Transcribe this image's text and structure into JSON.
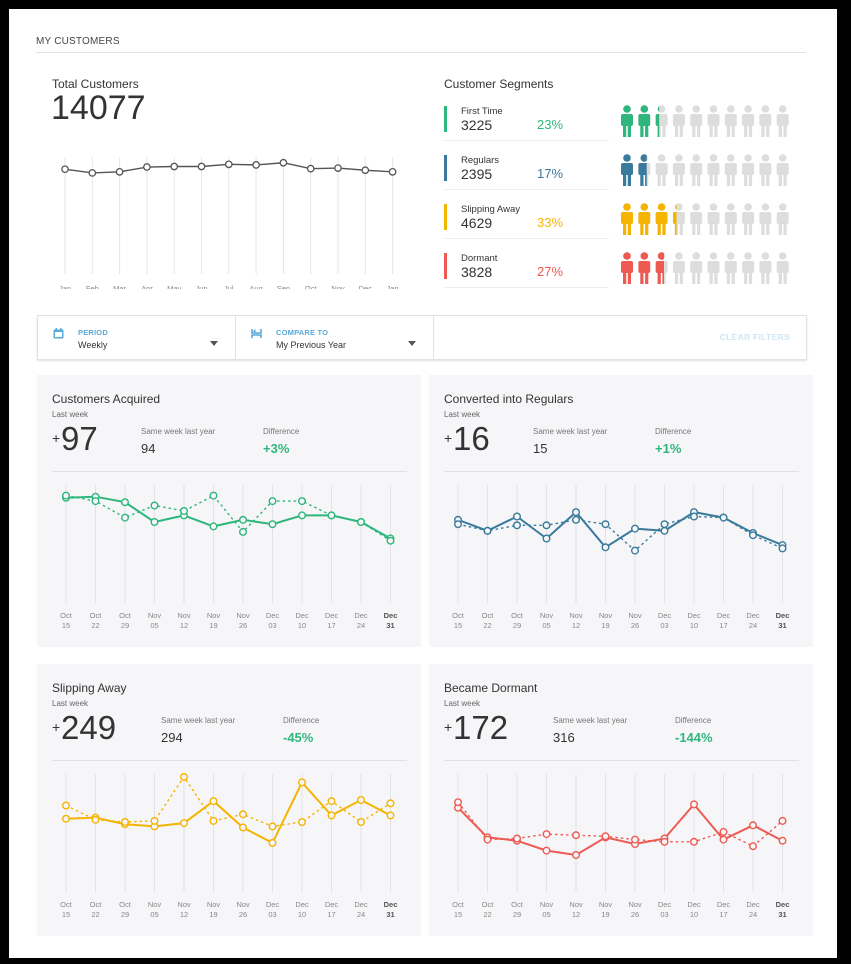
{
  "page": {
    "title": "MY CUSTOMERS"
  },
  "total": {
    "label": "Total Customers",
    "value": "14077",
    "chart_data": {
      "type": "line",
      "categories": [
        "Jan",
        "Feb",
        "Mar",
        "Apr",
        "May",
        "Jun",
        "Jul",
        "Aug",
        "Sep",
        "Oct",
        "Nov",
        "Dec",
        "Jan"
      ],
      "values": [
        14050,
        13980,
        14000,
        14090,
        14100,
        14100,
        14140,
        14130,
        14170,
        14060,
        14070,
        14030,
        14000
      ],
      "ylim": [
        12000,
        14800
      ],
      "grid": "vertical"
    }
  },
  "segments": {
    "title": "Customer Segments",
    "items": [
      {
        "name": "First Time",
        "value": "3225",
        "percent": "23%",
        "fraction": 0.23,
        "color": "#2fb67c"
      },
      {
        "name": "Regulars",
        "value": "2395",
        "percent": "17%",
        "fraction": 0.17,
        "color": "#3a7a9c"
      },
      {
        "name": "Slipping Away",
        "value": "4629",
        "percent": "33%",
        "fraction": 0.33,
        "color": "#f4b400"
      },
      {
        "name": "Dormant",
        "value": "3828",
        "percent": "27%",
        "fraction": 0.27,
        "color": "#ee5a52"
      }
    ],
    "icon": "person-icon",
    "icon_inactive_color": "#dddddd"
  },
  "filters": {
    "period": {
      "label": "PERIOD",
      "value": "Weekly",
      "icon": "calendar-icon"
    },
    "compare": {
      "label": "COMPARE TO",
      "value": "My Previous Year",
      "icon": "compare-icon"
    },
    "clear_label": "CLEAR FILTERS"
  },
  "panels": [
    {
      "title": "Customers Acquired",
      "sub": "Last week",
      "plus": "+",
      "value": "97",
      "compare_label": "Same week last year",
      "compare_value": "94",
      "diff_label": "Difference",
      "diff_value": "+3%",
      "color": "#2fb67c",
      "chart_data": {
        "type": "line",
        "categories": [
          "Oct 15",
          "Oct 22",
          "Oct 29",
          "Nov 05",
          "Nov 12",
          "Nov 19",
          "Nov 26",
          "Dec 03",
          "Dec 10",
          "Dec 17",
          "Dec 24",
          "Dec 31"
        ],
        "ylim": [
          0,
          100
        ],
        "series": [
          {
            "style": "solid",
            "values": [
              92,
              93,
              88,
              70,
              76,
              66,
              72,
              68,
              76,
              76,
              70,
              55
            ]
          },
          {
            "style": "dashed",
            "values": [
              94,
              89,
              74,
              85,
              80,
              94,
              61,
              89,
              89,
              76,
              70,
              53
            ]
          }
        ]
      }
    },
    {
      "title": "Converted into Regulars",
      "sub": "Last week",
      "plus": "+",
      "value": "16",
      "compare_label": "Same week last year",
      "compare_value": "15",
      "diff_label": "Difference",
      "diff_value": "+1%",
      "color": "#3a7a9c",
      "chart_data": {
        "type": "line",
        "categories": [
          "Oct 15",
          "Oct 22",
          "Oct 29",
          "Nov 05",
          "Nov 12",
          "Nov 19",
          "Nov 26",
          "Dec 03",
          "Dec 10",
          "Dec 17",
          "Dec 24",
          "Dec 31"
        ],
        "ylim": [
          0,
          100
        ],
        "series": [
          {
            "style": "solid",
            "values": [
              72,
              62,
              75,
              55,
              79,
              47,
              64,
              62,
              79,
              74,
              60,
              49
            ]
          },
          {
            "style": "dashed",
            "values": [
              68,
              62,
              67,
              67,
              72,
              68,
              44,
              68,
              75,
              74,
              58,
              46
            ]
          }
        ]
      }
    },
    {
      "title": "Slipping Away",
      "sub": "Last week",
      "plus": "+",
      "value": "249",
      "compare_label": "Same week last year",
      "compare_value": "294",
      "diff_label": "Difference",
      "diff_value": "-45%",
      "color": "#f4b400",
      "chart_data": {
        "type": "line",
        "categories": [
          "Oct 15",
          "Oct 22",
          "Oct 29",
          "Nov 05",
          "Nov 12",
          "Nov 19",
          "Nov 26",
          "Dec 03",
          "Dec 10",
          "Dec 17",
          "Dec 24",
          "Dec 31"
        ],
        "ylim": [
          0,
          100
        ],
        "series": [
          {
            "style": "solid",
            "values": [
              63,
              64,
              58,
              56,
              59,
              79,
              55,
              41,
              96,
              66,
              80,
              66
            ]
          },
          {
            "style": "dashed",
            "values": [
              75,
              62,
              60,
              61,
              101,
              61,
              67,
              56,
              60,
              79,
              60,
              77
            ]
          }
        ]
      }
    },
    {
      "title": "Became Dormant",
      "sub": "Last week",
      "plus": "+",
      "value": "172",
      "compare_label": "Same week last year",
      "compare_value": "316",
      "diff_label": "Difference",
      "diff_value": "-144%",
      "color": "#ee5a52",
      "chart_data": {
        "type": "line",
        "categories": [
          "Oct 15",
          "Oct 22",
          "Oct 29",
          "Nov 05",
          "Nov 12",
          "Nov 19",
          "Nov 26",
          "Dec 03",
          "Dec 10",
          "Dec 17",
          "Dec 24",
          "Dec 31"
        ],
        "ylim": [
          0,
          100
        ],
        "series": [
          {
            "style": "solid",
            "values": [
              73,
              46,
              43,
              34,
              30,
              46,
              40,
              45,
              76,
              44,
              57,
              43
            ]
          },
          {
            "style": "dashed",
            "values": [
              78,
              44,
              45,
              49,
              48,
              47,
              44,
              42,
              42,
              51,
              38,
              61
            ]
          }
        ]
      }
    }
  ]
}
